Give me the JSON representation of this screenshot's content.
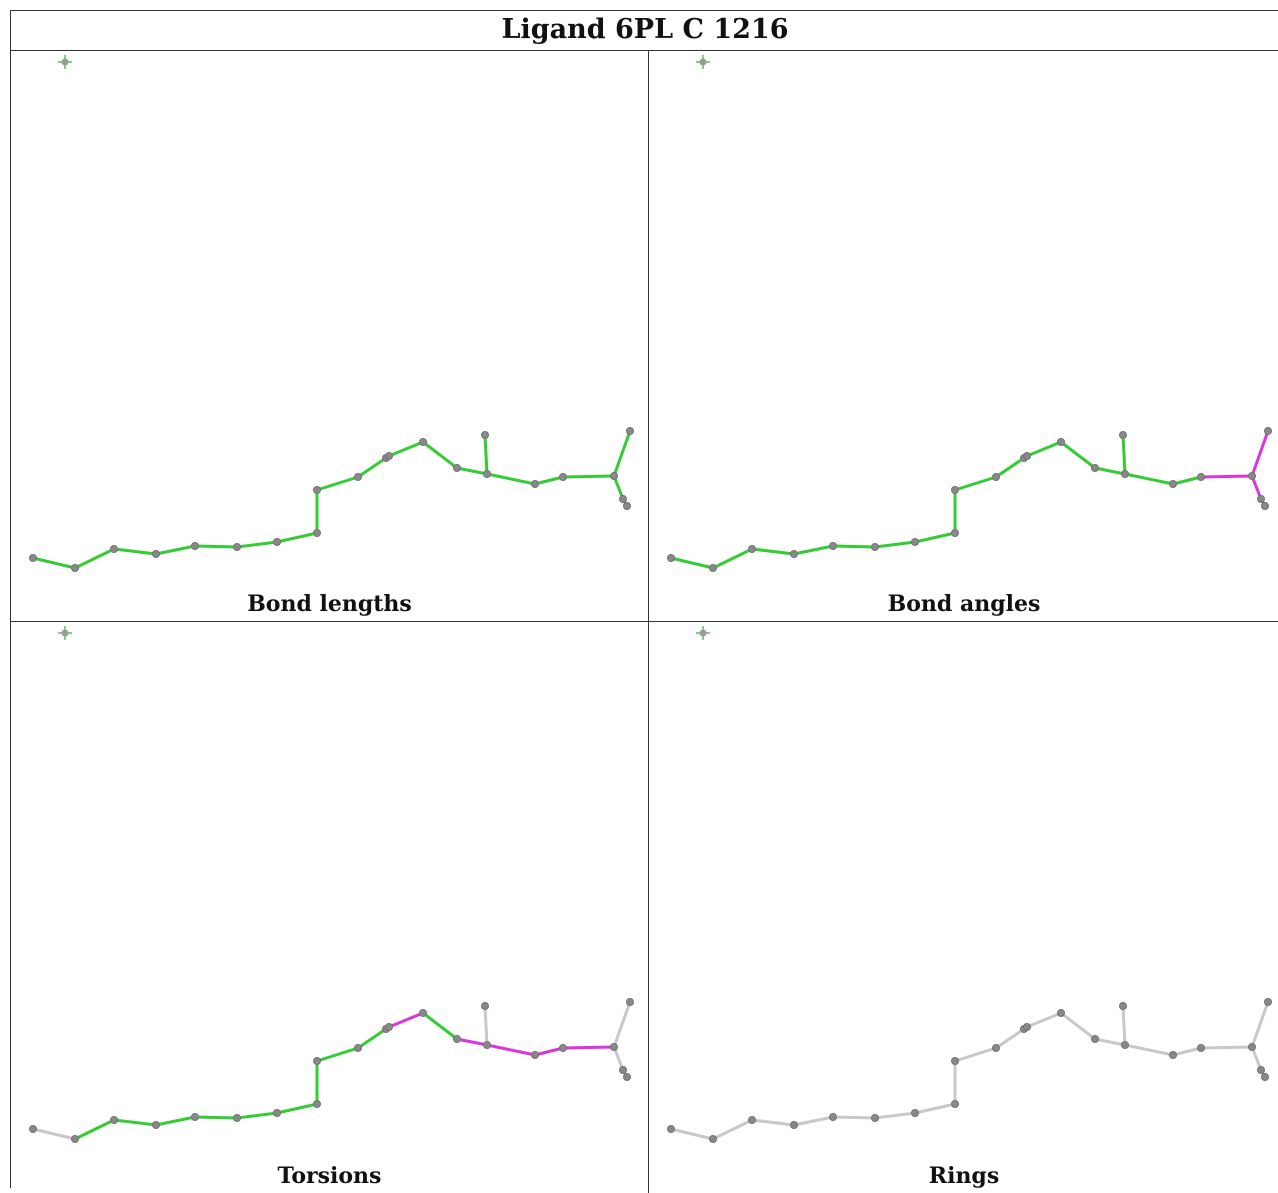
{
  "title": "Ligand 6PL C 1216",
  "colors": {
    "ok": "#33cc33",
    "outlier": "#dd33dd",
    "neutral": "#c8c8c8",
    "atom": "#888888"
  },
  "panels": [
    {
      "caption": "Bond lengths"
    },
    {
      "caption": "Bond angles"
    },
    {
      "caption": "Torsions"
    },
    {
      "caption": "Rings"
    }
  ]
}
